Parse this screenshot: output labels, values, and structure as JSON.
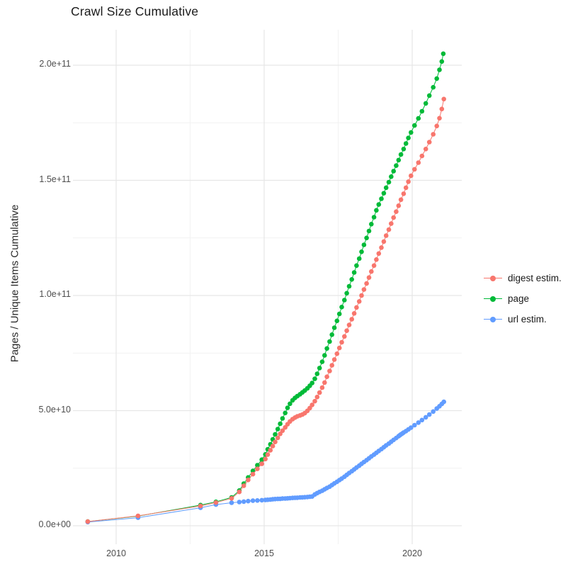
{
  "chart": {
    "title": "Crawl Size Cumulative",
    "y_axis_title": "Pages / Unique Items Cumulative",
    "x_axis_title": ""
  },
  "axes": {
    "y_ticks": [
      {
        "label": "2.0e+11",
        "value": 200
      },
      {
        "label": "1.5e+11",
        "value": 150
      },
      {
        "label": "1.0e+11",
        "value": 100
      },
      {
        "label": "5.0e+10",
        "value": 50
      },
      {
        "label": "0.0e+00",
        "value": 0
      }
    ],
    "x_ticks": [
      {
        "label": "2010",
        "value": 2010
      },
      {
        "label": "2015",
        "value": 2015
      },
      {
        "label": "2020",
        "value": 2020
      }
    ]
  },
  "legend": {
    "items": [
      {
        "label": "digest estim.",
        "color": "#F8766D"
      },
      {
        "label": "page",
        "color": "#00BA38"
      },
      {
        "label": "url estim.",
        "color": "#619CFF"
      }
    ]
  },
  "colors": {
    "background": "#ffffff",
    "grid_major": "#e7e7e7",
    "grid_minor": "#f1f1f1",
    "tick_text": "#4d4d4d",
    "digest": "#F8766D",
    "page": "#00BA38",
    "url": "#619CFF"
  },
  "chart_data": {
    "type": "scatter",
    "style": "points connected by thin lines (ggplot-like)",
    "title": "Crawl Size Cumulative",
    "xlabel": "",
    "ylabel": "Pages / Unique Items Cumulative",
    "x_unit": "year (decimal)",
    "values_unit": "pages / unique items, stored as billions (1e9)",
    "xlim": [
      2008.45,
      2021.67
    ],
    "ylim_billions": [
      -8.6,
      215.3
    ],
    "x_major_gridlines": [
      2010,
      2015,
      2020
    ],
    "x_minor_gridlines": [
      2012.5,
      2017.5
    ],
    "y_major_gridlines_billions": [
      0,
      50,
      100,
      150,
      200
    ],
    "y_minor_gridlines_billions": [
      25,
      75,
      125,
      175
    ],
    "grid": true,
    "legend_position": "right",
    "draw_order": [
      "page",
      "url estim.",
      "digest estim."
    ],
    "series": [
      {
        "name": "digest estim.",
        "color": "#F8766D",
        "points": [
          [
            2009.04,
            1.8
          ],
          [
            2010.74,
            4.3
          ],
          [
            2012.85,
            8.6
          ],
          [
            2013.37,
            10.1
          ],
          [
            2013.9,
            11.9
          ],
          [
            2014.16,
            14.7
          ],
          [
            2014.31,
            17.4
          ],
          [
            2014.46,
            19.9
          ],
          [
            2014.62,
            22.4
          ],
          [
            2014.77,
            24.7
          ],
          [
            2014.92,
            26.9
          ],
          [
            2015.04,
            29.0
          ],
          [
            2015.12,
            30.9
          ],
          [
            2015.21,
            32.8
          ],
          [
            2015.29,
            34.6
          ],
          [
            2015.37,
            36.4
          ],
          [
            2015.46,
            38.2
          ],
          [
            2015.54,
            39.9
          ],
          [
            2015.62,
            41.3
          ],
          [
            2015.71,
            42.7
          ],
          [
            2015.79,
            44.1
          ],
          [
            2015.87,
            45.3
          ],
          [
            2015.96,
            46.3
          ],
          [
            2016.04,
            47.0
          ],
          [
            2016.12,
            47.5
          ],
          [
            2016.21,
            47.9
          ],
          [
            2016.29,
            48.3
          ],
          [
            2016.37,
            48.9
          ],
          [
            2016.46,
            49.9
          ],
          [
            2016.54,
            51.1
          ],
          [
            2016.62,
            52.5
          ],
          [
            2016.71,
            54.1
          ],
          [
            2016.79,
            55.9
          ],
          [
            2016.87,
            57.8
          ],
          [
            2016.96,
            60.0
          ],
          [
            2017.04,
            62.2
          ],
          [
            2017.12,
            64.7
          ],
          [
            2017.21,
            67.2
          ],
          [
            2017.29,
            69.7
          ],
          [
            2017.37,
            72.2
          ],
          [
            2017.46,
            74.7
          ],
          [
            2017.54,
            77.2
          ],
          [
            2017.62,
            79.7
          ],
          [
            2017.71,
            82.2
          ],
          [
            2017.79,
            84.7
          ],
          [
            2017.87,
            87.2
          ],
          [
            2017.96,
            89.7
          ],
          [
            2018.04,
            92.2
          ],
          [
            2018.12,
            94.8
          ],
          [
            2018.21,
            97.4
          ],
          [
            2018.29,
            100.0
          ],
          [
            2018.37,
            102.6
          ],
          [
            2018.46,
            105.2
          ],
          [
            2018.54,
            107.8
          ],
          [
            2018.62,
            110.4
          ],
          [
            2018.71,
            113.0
          ],
          [
            2018.79,
            115.6
          ],
          [
            2018.87,
            118.2
          ],
          [
            2018.96,
            120.8
          ],
          [
            2019.04,
            123.4
          ],
          [
            2019.12,
            126.0
          ],
          [
            2019.21,
            128.6
          ],
          [
            2019.29,
            131.2
          ],
          [
            2019.37,
            133.8
          ],
          [
            2019.46,
            136.4
          ],
          [
            2019.54,
            139.0
          ],
          [
            2019.62,
            141.6
          ],
          [
            2019.71,
            144.2
          ],
          [
            2019.79,
            146.8
          ],
          [
            2019.87,
            149.4
          ],
          [
            2019.96,
            152.0
          ],
          [
            2020.08,
            154.8
          ],
          [
            2020.21,
            157.7
          ],
          [
            2020.33,
            160.6
          ],
          [
            2020.46,
            163.6
          ],
          [
            2020.58,
            166.6
          ],
          [
            2020.71,
            170.0
          ],
          [
            2020.83,
            173.6
          ],
          [
            2020.92,
            177.0
          ],
          [
            2021.0,
            181.0
          ],
          [
            2021.07,
            185.3
          ]
        ]
      },
      {
        "name": "page",
        "color": "#00BA38",
        "points": [
          [
            2009.04,
            1.8
          ],
          [
            2010.74,
            4.2
          ],
          [
            2012.85,
            9.0
          ],
          [
            2013.37,
            10.4
          ],
          [
            2013.9,
            12.3
          ],
          [
            2014.16,
            15.3
          ],
          [
            2014.31,
            18.3
          ],
          [
            2014.46,
            21.0
          ],
          [
            2014.62,
            23.8
          ],
          [
            2014.77,
            26.3
          ],
          [
            2014.92,
            28.7
          ],
          [
            2015.04,
            31.0
          ],
          [
            2015.12,
            33.2
          ],
          [
            2015.21,
            35.4
          ],
          [
            2015.29,
            37.5
          ],
          [
            2015.37,
            39.7
          ],
          [
            2015.46,
            42.0
          ],
          [
            2015.54,
            44.3
          ],
          [
            2015.62,
            46.6
          ],
          [
            2015.71,
            49.0
          ],
          [
            2015.79,
            51.2
          ],
          [
            2015.87,
            53.0
          ],
          [
            2015.96,
            54.5
          ],
          [
            2016.04,
            55.5
          ],
          [
            2016.12,
            56.3
          ],
          [
            2016.21,
            57.1
          ],
          [
            2016.29,
            57.9
          ],
          [
            2016.37,
            58.7
          ],
          [
            2016.46,
            59.7
          ],
          [
            2016.54,
            60.8
          ],
          [
            2016.62,
            62.0
          ],
          [
            2016.71,
            63.8
          ],
          [
            2016.79,
            66.0
          ],
          [
            2016.87,
            68.5
          ],
          [
            2016.96,
            71.2
          ],
          [
            2017.04,
            74.0
          ],
          [
            2017.12,
            77.0
          ],
          [
            2017.21,
            80.0
          ],
          [
            2017.29,
            83.0
          ],
          [
            2017.37,
            86.0
          ],
          [
            2017.46,
            89.0
          ],
          [
            2017.54,
            92.0
          ],
          [
            2017.62,
            95.0
          ],
          [
            2017.71,
            98.0
          ],
          [
            2017.79,
            101.0
          ],
          [
            2017.87,
            104.0
          ],
          [
            2017.96,
            107.0
          ],
          [
            2018.04,
            110.0
          ],
          [
            2018.12,
            113.0
          ],
          [
            2018.21,
            116.0
          ],
          [
            2018.29,
            119.0
          ],
          [
            2018.37,
            122.0
          ],
          [
            2018.46,
            125.0
          ],
          [
            2018.54,
            128.0
          ],
          [
            2018.62,
            131.0
          ],
          [
            2018.71,
            134.0
          ],
          [
            2018.79,
            137.0
          ],
          [
            2018.87,
            139.5
          ],
          [
            2018.96,
            142.0
          ],
          [
            2019.04,
            144.4
          ],
          [
            2019.12,
            146.8
          ],
          [
            2019.21,
            149.2
          ],
          [
            2019.29,
            151.6
          ],
          [
            2019.37,
            154.0
          ],
          [
            2019.46,
            156.4
          ],
          [
            2019.54,
            158.8
          ],
          [
            2019.62,
            161.2
          ],
          [
            2019.71,
            163.6
          ],
          [
            2019.79,
            166.0
          ],
          [
            2019.87,
            168.4
          ],
          [
            2019.96,
            170.8
          ],
          [
            2020.08,
            173.8
          ],
          [
            2020.21,
            176.9
          ],
          [
            2020.33,
            180.0
          ],
          [
            2020.46,
            183.4
          ],
          [
            2020.58,
            186.8
          ],
          [
            2020.71,
            190.4
          ],
          [
            2020.83,
            194.2
          ],
          [
            2020.92,
            198.0
          ],
          [
            2021.0,
            201.6
          ],
          [
            2021.05,
            205.0
          ]
        ]
      },
      {
        "name": "url estim.",
        "color": "#619CFF",
        "points": [
          [
            2009.04,
            1.6
          ],
          [
            2010.74,
            3.5
          ],
          [
            2012.85,
            7.8
          ],
          [
            2013.37,
            9.2
          ],
          [
            2013.9,
            10.0
          ],
          [
            2014.16,
            10.3
          ],
          [
            2014.31,
            10.5
          ],
          [
            2014.46,
            10.7
          ],
          [
            2014.62,
            10.9
          ],
          [
            2014.77,
            11.0
          ],
          [
            2014.92,
            11.1
          ],
          [
            2015.04,
            11.2
          ],
          [
            2015.12,
            11.3
          ],
          [
            2015.21,
            11.4
          ],
          [
            2015.29,
            11.5
          ],
          [
            2015.37,
            11.6
          ],
          [
            2015.46,
            11.65
          ],
          [
            2015.54,
            11.7
          ],
          [
            2015.62,
            11.8
          ],
          [
            2015.71,
            11.85
          ],
          [
            2015.79,
            11.9
          ],
          [
            2015.87,
            12.0
          ],
          [
            2015.96,
            12.1
          ],
          [
            2016.04,
            12.15
          ],
          [
            2016.12,
            12.2
          ],
          [
            2016.21,
            12.3
          ],
          [
            2016.29,
            12.35
          ],
          [
            2016.37,
            12.4
          ],
          [
            2016.46,
            12.5
          ],
          [
            2016.54,
            12.6
          ],
          [
            2016.62,
            12.7
          ],
          [
            2016.71,
            13.6
          ],
          [
            2016.79,
            14.2
          ],
          [
            2016.87,
            14.7
          ],
          [
            2016.96,
            15.2
          ],
          [
            2017.04,
            15.8
          ],
          [
            2017.12,
            16.4
          ],
          [
            2017.21,
            17.0
          ],
          [
            2017.29,
            17.7
          ],
          [
            2017.37,
            18.4
          ],
          [
            2017.46,
            19.1
          ],
          [
            2017.54,
            19.8
          ],
          [
            2017.62,
            20.5
          ],
          [
            2017.71,
            21.3
          ],
          [
            2017.79,
            22.1
          ],
          [
            2017.87,
            22.9
          ],
          [
            2017.96,
            23.7
          ],
          [
            2018.04,
            24.5
          ],
          [
            2018.12,
            25.3
          ],
          [
            2018.21,
            26.1
          ],
          [
            2018.29,
            26.9
          ],
          [
            2018.37,
            27.7
          ],
          [
            2018.46,
            28.5
          ],
          [
            2018.54,
            29.3
          ],
          [
            2018.62,
            30.1
          ],
          [
            2018.71,
            30.9
          ],
          [
            2018.79,
            31.7
          ],
          [
            2018.87,
            32.5
          ],
          [
            2018.96,
            33.3
          ],
          [
            2019.04,
            34.1
          ],
          [
            2019.12,
            34.9
          ],
          [
            2019.21,
            35.7
          ],
          [
            2019.29,
            36.5
          ],
          [
            2019.37,
            37.3
          ],
          [
            2019.46,
            38.1
          ],
          [
            2019.54,
            38.9
          ],
          [
            2019.58,
            39.3
          ],
          [
            2019.62,
            39.7
          ],
          [
            2019.67,
            40.1
          ],
          [
            2019.71,
            40.5
          ],
          [
            2019.79,
            41.1
          ],
          [
            2019.87,
            41.8
          ],
          [
            2019.96,
            42.6
          ],
          [
            2020.08,
            43.7
          ],
          [
            2020.21,
            44.8
          ],
          [
            2020.33,
            45.9
          ],
          [
            2020.46,
            47.1
          ],
          [
            2020.58,
            48.3
          ],
          [
            2020.71,
            49.6
          ],
          [
            2020.83,
            50.9
          ],
          [
            2020.92,
            51.9
          ],
          [
            2021.0,
            52.9
          ],
          [
            2021.07,
            53.8
          ]
        ]
      }
    ]
  }
}
